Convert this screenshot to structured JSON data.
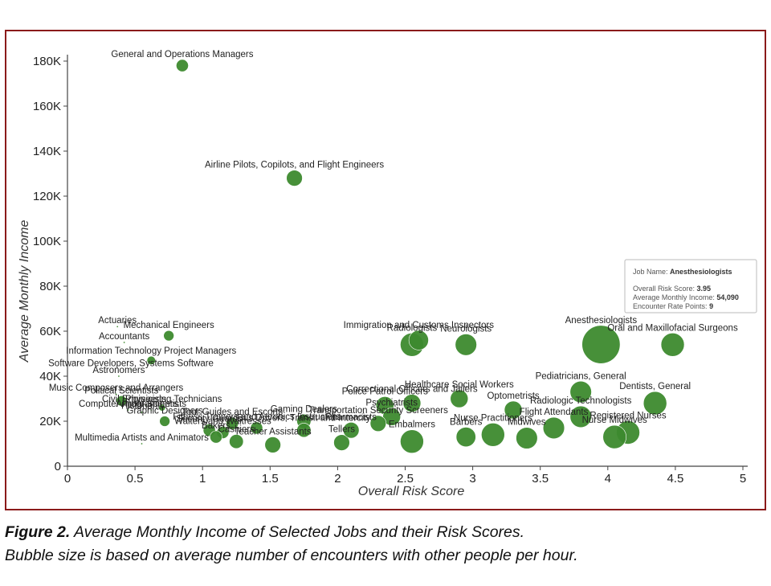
{
  "chart_data": {
    "type": "scatter",
    "subtype": "bubble",
    "xlabel": "Overall Risk Score",
    "ylabel": "Average Monthly Income",
    "xlim": [
      0,
      5
    ],
    "ylim": [
      0,
      180000
    ],
    "x_ticks": [
      "0",
      "0.5",
      "1",
      "1.5",
      "2",
      "2.5",
      "3",
      "3.5",
      "4",
      "4.5",
      "5"
    ],
    "y_ticks": [
      "0",
      "20K",
      "40K",
      "60K",
      "80K",
      "100K",
      "120K",
      "140K",
      "160K",
      "180K"
    ],
    "grid": false,
    "bubble_color": "#3d8a2e",
    "points": [
      {
        "label": "General and Operations Managers",
        "x": 0.85,
        "y": 178000,
        "size": 2
      },
      {
        "label": "Airline Pilots, Copilots, and Flight Engineers",
        "x": 1.68,
        "y": 128000,
        "size": 3
      },
      {
        "label": "Actuaries",
        "x": 0.37,
        "y": 62000,
        "size": 0.2
      },
      {
        "label": "Mechanical Engineers",
        "x": 0.75,
        "y": 58000,
        "size": 1.5
      },
      {
        "label": "Accountants",
        "x": 0.42,
        "y": 55000,
        "size": 0.3
      },
      {
        "label": "Information Technology Project Managers",
        "x": 0.62,
        "y": 47000,
        "size": 1
      },
      {
        "label": "Software Developers, Systems Software",
        "x": 0.47,
        "y": 43000,
        "size": 0.3
      },
      {
        "label": "Astronomers",
        "x": 0.38,
        "y": 40000,
        "size": 0.2
      },
      {
        "label": "Music Composers and Arrangers",
        "x": 0.36,
        "y": 32000,
        "size": 0.3
      },
      {
        "label": "Political Scientists",
        "x": 0.4,
        "y": 29000,
        "size": 1.5
      },
      {
        "label": "Physicists",
        "x": 0.58,
        "y": 27000,
        "size": 0.3
      },
      {
        "label": "Civil Engineering Technicians",
        "x": 0.7,
        "y": 26000,
        "size": 0.5
      },
      {
        "label": "Animal Scientists",
        "x": 0.62,
        "y": 25000,
        "size": 0.3
      },
      {
        "label": "Computer Programmers",
        "x": 0.45,
        "y": 25000,
        "size": 0.3
      },
      {
        "label": "Historians",
        "x": 0.55,
        "y": 24000,
        "size": 0.3
      },
      {
        "label": "Graphic Designers",
        "x": 0.72,
        "y": 20000,
        "size": 1.5
      },
      {
        "label": "Tour Guides and Escorts",
        "x": 1.22,
        "y": 19000,
        "size": 2
      },
      {
        "label": "Fitness Trainers and Aerobics Instructors",
        "x": 1.4,
        "y": 17000,
        "size": 2
      },
      {
        "label": "Security Guards",
        "x": 1.05,
        "y": 16000,
        "size": 2
      },
      {
        "label": "Waiters and Waitresses",
        "x": 1.15,
        "y": 15000,
        "size": 2
      },
      {
        "label": "Bakers",
        "x": 1.1,
        "y": 13000,
        "size": 2
      },
      {
        "label": "Multimedia Artists and Animators",
        "x": 0.55,
        "y": 10000,
        "size": 0.3
      },
      {
        "label": "Cashiers",
        "x": 1.25,
        "y": 11000,
        "size": 2.5
      },
      {
        "label": "Gaming Dealers",
        "x": 1.75,
        "y": 20000,
        "size": 2.5
      },
      {
        "label": "Bus Drivers, Transit and Intercity",
        "x": 1.75,
        "y": 16000,
        "size": 2.5
      },
      {
        "label": "Teacher Assistants",
        "x": 1.52,
        "y": 9500,
        "size": 3
      },
      {
        "label": "Tellers",
        "x": 2.03,
        "y": 10500,
        "size": 3
      },
      {
        "label": "Pharmacists",
        "x": 2.1,
        "y": 16000,
        "size": 3
      },
      {
        "label": "Transportation Security Screeners",
        "x": 2.3,
        "y": 19000,
        "size": 3
      },
      {
        "label": "Police Patrol Officers",
        "x": 2.35,
        "y": 27000,
        "size": 3.5
      },
      {
        "label": "Psychiatrists",
        "x": 2.4,
        "y": 22000,
        "size": 3.5
      },
      {
        "label": "Correctional Officers and Jailers",
        "x": 2.55,
        "y": 28000,
        "size": 3.5
      },
      {
        "label": "Embalmers",
        "x": 2.55,
        "y": 11000,
        "size": 5
      },
      {
        "label": "Radiologists",
        "x": 2.55,
        "y": 54000,
        "size": 5
      },
      {
        "label": "Immigration and Customs Inspectors",
        "x": 2.6,
        "y": 56000,
        "size": 4
      },
      {
        "label": "Neurologists",
        "x": 2.95,
        "y": 54000,
        "size": 4.5
      },
      {
        "label": "Barbers",
        "x": 2.95,
        "y": 13000,
        "size": 4
      },
      {
        "label": "Healthcare Social Workers",
        "x": 2.9,
        "y": 30000,
        "size": 3.5
      },
      {
        "label": "Optometrists",
        "x": 3.3,
        "y": 25000,
        "size": 3.5
      },
      {
        "label": "Midwives",
        "x": 3.4,
        "y": 12500,
        "size": 4.5
      },
      {
        "label": "Flight Attendants",
        "x": 3.6,
        "y": 17000,
        "size": 4.5
      },
      {
        "label": "Pediatricians, General",
        "x": 3.8,
        "y": 33000,
        "size": 4.5
      },
      {
        "label": "Radiologic Technologists",
        "x": 3.8,
        "y": 22000,
        "size": 4.5
      },
      {
        "label": "Anesthesiologists",
        "x": 3.95,
        "y": 54090,
        "size": 9
      },
      {
        "label": "Oral and Maxillofacial Surgeons",
        "x": 4.48,
        "y": 54000,
        "size": 5
      },
      {
        "label": "Dentists, General",
        "x": 4.35,
        "y": 28000,
        "size": 5
      },
      {
        "label": "Registered Nurses",
        "x": 4.15,
        "y": 15000,
        "size": 5
      },
      {
        "label": "Nurse Midwives",
        "x": 4.05,
        "y": 13000,
        "size": 5
      },
      {
        "label": "Nurse Practitioners",
        "x": 3.15,
        "y": 14000,
        "size": 5
      }
    ],
    "tooltip": {
      "title_label": "Job Name:",
      "title_value": "Anesthesiologists",
      "rows": [
        {
          "label": "Overall Risk Score:",
          "value": "3.95"
        },
        {
          "label": "Average Monthly Income:",
          "value": "54,090"
        },
        {
          "label": "Encounter Rate Points:",
          "value": "9"
        }
      ]
    }
  },
  "caption": {
    "figure_label": "Figure 2.",
    "line1": " Average Monthly Income of Selected Jobs and their Risk Scores.",
    "line2": "Bubble size is based on average number of encounters with other people per hour."
  }
}
